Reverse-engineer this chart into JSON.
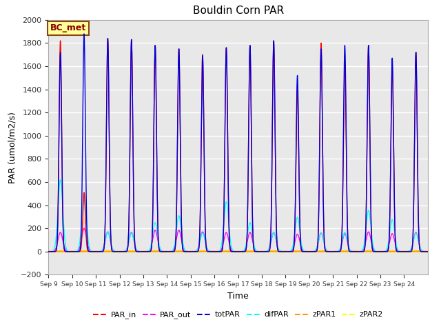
{
  "title": "Bouldin Corn PAR",
  "ylabel": "PAR (umol/m2/s)",
  "xlabel": "Time",
  "ylim": [
    -200,
    2000
  ],
  "annotation_text": "BC_met",
  "num_days": 16,
  "series": {
    "PAR_in": {
      "color": "#ff0000",
      "lw": 1.0,
      "zorder": 4
    },
    "PAR_out": {
      "color": "#ff00ff",
      "lw": 1.0,
      "zorder": 3
    },
    "totPAR": {
      "color": "#0000dd",
      "lw": 1.0,
      "zorder": 5
    },
    "difPAR": {
      "color": "#00ffff",
      "lw": 1.0,
      "zorder": 3
    },
    "zPAR1": {
      "color": "#ff9900",
      "lw": 1.5,
      "zorder": 2
    },
    "zPAR2": {
      "color": "#ffff00",
      "lw": 2.0,
      "zorder": 2
    }
  },
  "bg_color": "#e8e8e8",
  "grid_color": "#ffffff",
  "par_in_peaks": [
    1820,
    510,
    1840,
    1830,
    1780,
    1750,
    1700,
    1760,
    1780,
    1820,
    1390,
    1800,
    1640,
    1780,
    1600,
    1720
  ],
  "tot_par_peaks": [
    1720,
    1880,
    1840,
    1830,
    1780,
    1750,
    1690,
    1760,
    1780,
    1820,
    1520,
    1750,
    1780,
    1780,
    1670,
    1720
  ],
  "dif_par_peaks": [
    620,
    450,
    170,
    160,
    250,
    310,
    160,
    430,
    250,
    165,
    295,
    160,
    165,
    355,
    275,
    160
  ],
  "par_out_peaks": [
    165,
    200,
    170,
    165,
    185,
    185,
    170,
    165,
    165,
    165,
    150,
    160,
    155,
    170,
    155,
    165
  ],
  "tick_labels": [
    "Sep 9",
    "Sep 10",
    "Sep 11",
    "Sep 12",
    "Sep 13",
    "Sep 14",
    "Sep 15",
    "Sep 16",
    "Sep 17",
    "Sep 18",
    "Sep 19",
    "Sep 20",
    "Sep 21",
    "Sep 22",
    "Sep 23",
    "Sep 24"
  ]
}
